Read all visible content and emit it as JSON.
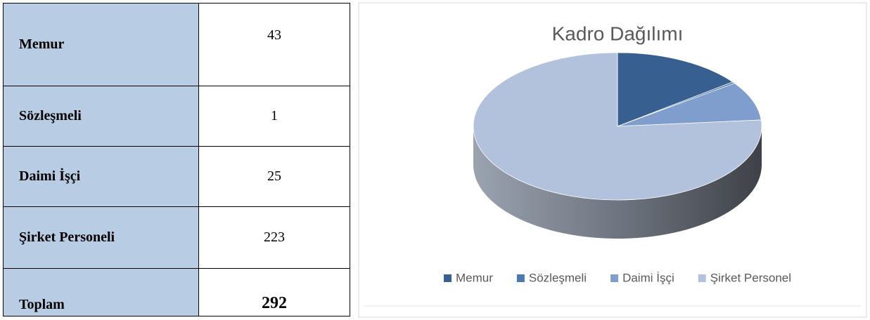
{
  "table": {
    "rows": [
      [
        "Memur",
        43
      ],
      [
        "Sözleşmeli",
        1
      ],
      [
        "Daimi İşçi",
        25
      ],
      [
        "Şirket Personeli",
        223
      ]
    ],
    "total": [
      "Toplam",
      292
    ]
  },
  "chart_data": {
    "type": "pie",
    "title": "Kadro Dağılımı",
    "categories": [
      "Memur",
      "Sözleşmeli",
      "Daimi İşçi",
      "Şirket Personel"
    ],
    "values": [
      43,
      1,
      25,
      223
    ],
    "colors": [
      "#375f8f",
      "#4a78b0",
      "#7f9ecd",
      "#b3c2dc"
    ]
  }
}
